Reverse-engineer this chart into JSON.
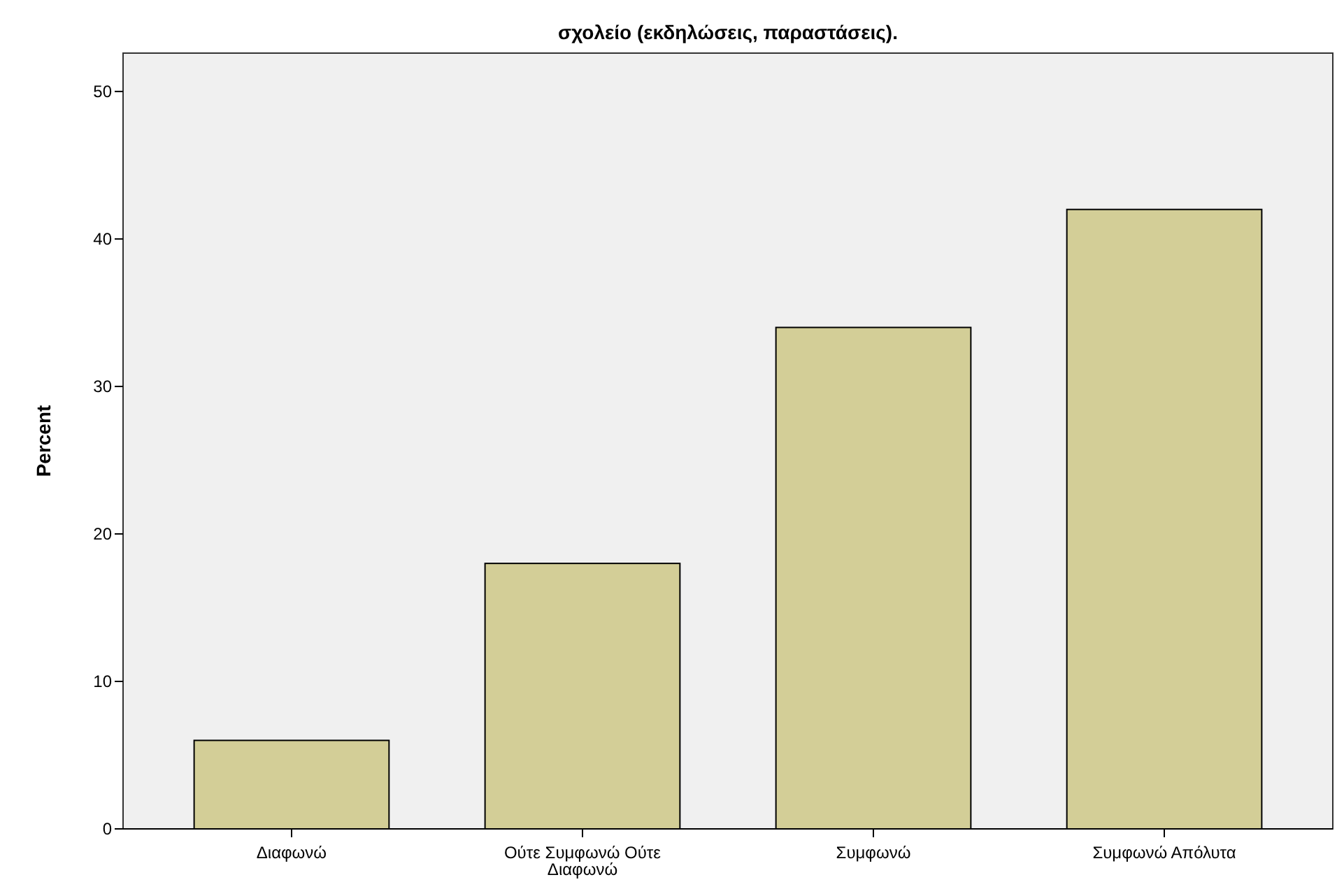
{
  "chart_data": {
    "type": "bar",
    "title": "σχολείο (εκδηλώσεις, παραστάσεις).",
    "ylabel": "Percent",
    "categories": [
      "Διαφωνώ",
      "Ούτε Συμφωνώ Ούτε Διαφωνώ",
      "Συμφωνώ",
      "Συμφωνώ Απόλυτα"
    ],
    "values": [
      6,
      18,
      34,
      42
    ],
    "color": "#d3ce97",
    "ylim": [
      0,
      52.6
    ],
    "yticks": [
      0,
      10,
      20,
      30,
      40,
      50
    ],
    "grid": false
  }
}
